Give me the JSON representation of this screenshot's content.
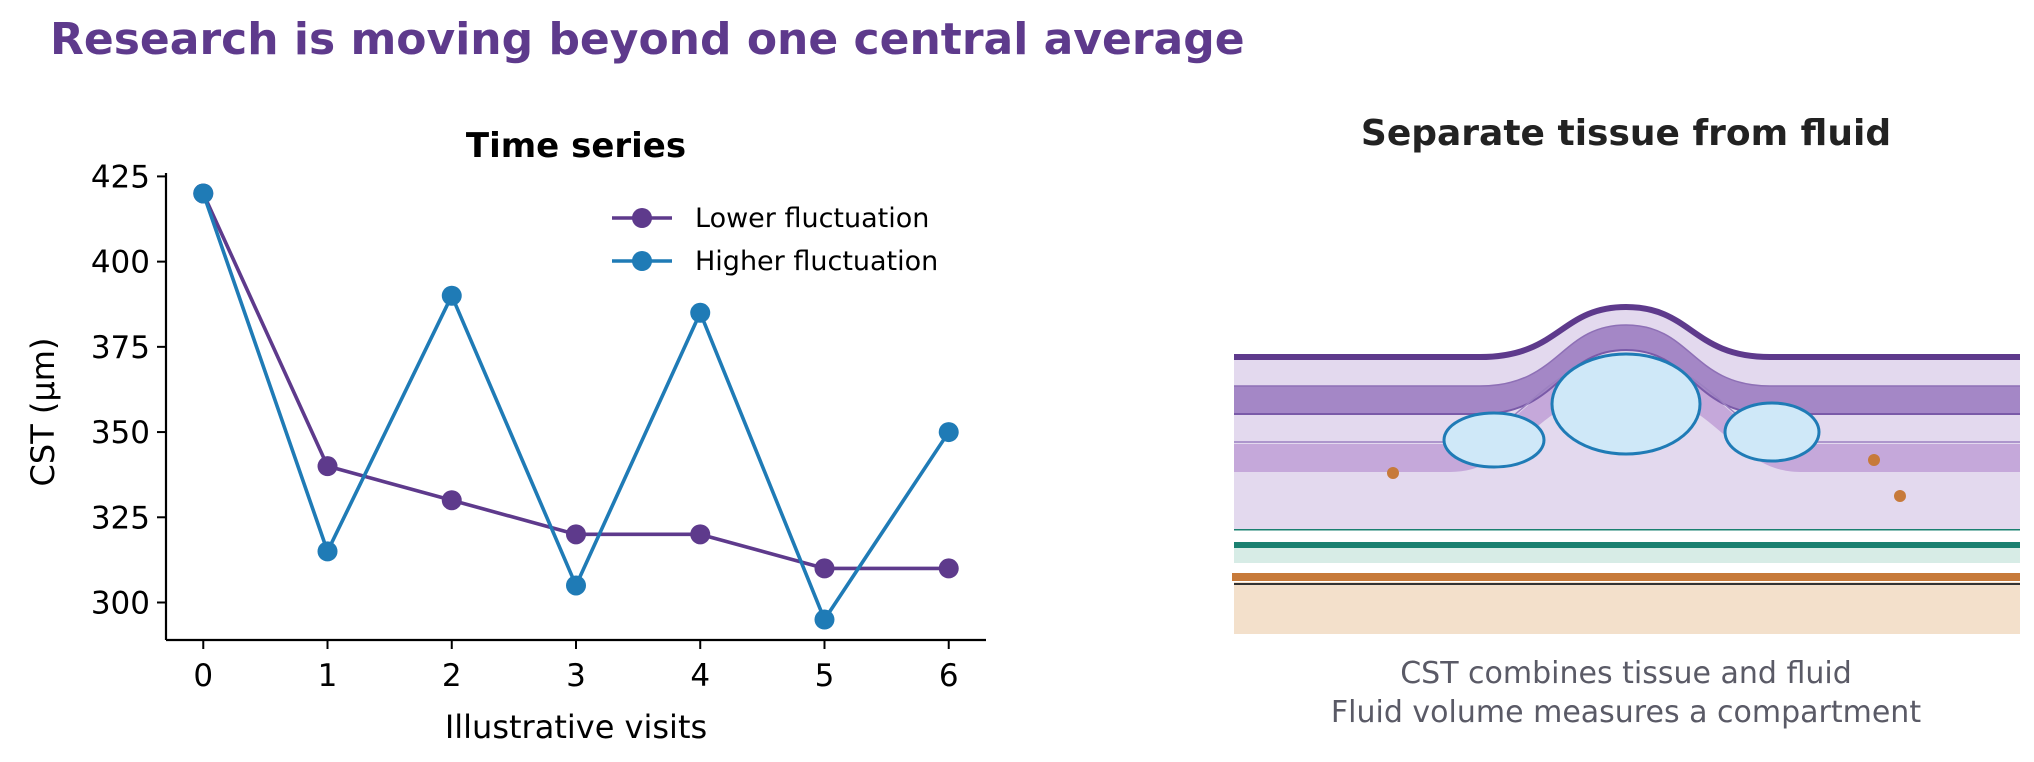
{
  "page": {
    "title": "Research is moving beyond one central average"
  },
  "chart_data": {
    "type": "line",
    "title": "Time series",
    "xlabel": "Illustrative visits",
    "ylabel": "CST (μm)",
    "x": [
      0,
      1,
      2,
      3,
      4,
      5,
      6
    ],
    "xlim": [
      -0.3,
      6.3
    ],
    "ylim": [
      289,
      426
    ],
    "yticks": [
      300,
      325,
      350,
      375,
      400,
      425
    ],
    "grid": false,
    "legend_position": "top-right",
    "series": [
      {
        "name": "Lower fluctuation",
        "color": "#5e3a8c",
        "values": [
          420,
          340,
          330,
          320,
          320,
          310,
          310
        ]
      },
      {
        "name": "Higher fluctuation",
        "color": "#1f7bb6",
        "values": [
          420,
          315,
          390,
          305,
          385,
          295,
          350
        ]
      }
    ]
  },
  "diagram": {
    "title": "Separate tissue from fluid",
    "caption_line1": "CST combines tissue and fluid",
    "caption_line2": "Fluid volume measures a compartment",
    "colors": {
      "tissue_outline": "#5e3a8c",
      "tissue_light": "#e3d9ee",
      "tissue_medium": "#a487c6",
      "fluid_fill": "#cfe8f8",
      "fluid_outline": "#1f7bb6",
      "rpe_green": "#1a8070",
      "choroid_orange": "#c77a3a",
      "choroid_fill": "#f3e0cb"
    }
  }
}
